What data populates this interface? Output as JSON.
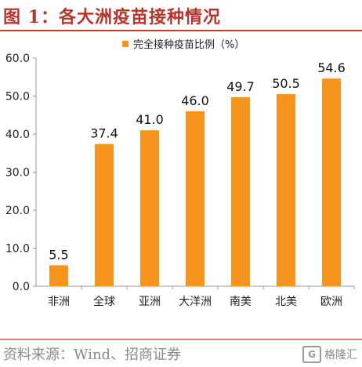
{
  "header": {
    "title": "图 1：各大洲疫苗接种情况"
  },
  "footer": {
    "source": "资料来源：Wind、招商证券",
    "watermark": "格隆汇"
  },
  "colors": {
    "bar": "#F7941D",
    "accent": "#C0392B"
  },
  "chart_data": {
    "type": "bar",
    "categories": [
      "非洲",
      "全球",
      "亚洲",
      "大洋洲",
      "南美",
      "北美",
      "欧洲"
    ],
    "series": [
      {
        "name": "完全接种疫苗比例（%）",
        "values": [
          5.5,
          37.4,
          41.0,
          46.0,
          49.7,
          50.5,
          54.6
        ]
      }
    ],
    "data_labels": [
      "5.5",
      "37.4",
      "41.0",
      "46.0",
      "49.7",
      "50.5",
      "54.6"
    ],
    "yticks": [
      "0.0",
      "10.0",
      "20.0",
      "30.0",
      "40.0",
      "50.0",
      "60.0"
    ],
    "ylim": [
      0,
      60
    ],
    "grid": false,
    "legend_position": "top-center"
  }
}
